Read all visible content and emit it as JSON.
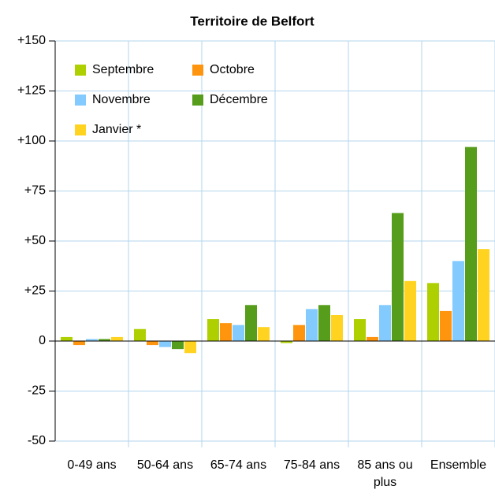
{
  "chart_data": {
    "type": "bar",
    "title": "Territoire de Belfort",
    "categories": [
      "0-49 ans",
      "50-64 ans",
      "65-74 ans",
      "75-84 ans",
      "85 ans ou plus",
      "Ensemble"
    ],
    "series": [
      {
        "name": "Septembre",
        "color": "#aecf00",
        "values": [
          2,
          6,
          11,
          -1,
          11,
          29
        ]
      },
      {
        "name": "Octobre",
        "color": "#ff950e",
        "values": [
          -2,
          -2,
          9,
          8,
          2,
          15
        ]
      },
      {
        "name": "Novembre",
        "color": "#83caff",
        "values": [
          1,
          -3,
          8,
          16,
          18,
          40
        ]
      },
      {
        "name": "Décembre",
        "color": "#579d1c",
        "values": [
          1,
          -4,
          18,
          18,
          64,
          97
        ]
      },
      {
        "name": "Janvier *",
        "color": "#ffd320",
        "values": [
          2,
          -6,
          7,
          13,
          30,
          46
        ]
      }
    ],
    "ylim": [
      -50,
      150
    ],
    "yticks": [
      {
        "value": 150,
        "label": "+150"
      },
      {
        "value": 125,
        "label": "+125"
      },
      {
        "value": 100,
        "label": "+100"
      },
      {
        "value": 75,
        "label": "+75"
      },
      {
        "value": 50,
        "label": "+50"
      },
      {
        "value": 25,
        "label": "+25"
      },
      0,
      -25,
      -50
    ],
    "grid": true
  }
}
